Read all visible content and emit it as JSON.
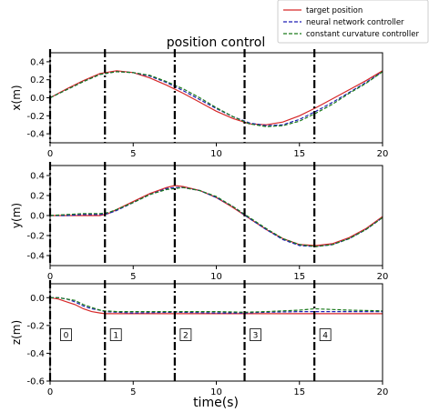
{
  "chart_data": {
    "type": "line",
    "title": "position control",
    "xlabel": "time(s)",
    "xlim": [
      0,
      20
    ],
    "xticks": [
      0,
      5,
      10,
      15,
      20
    ],
    "legend": {
      "placement": "top-right",
      "entries": [
        {
          "name": "target position",
          "color": "#d62728",
          "style": "solid"
        },
        {
          "name": "neural network controller",
          "color": "#1f1fb4",
          "style": "dashed"
        },
        {
          "name": "constant curvature controller",
          "color": "#1a7a1a",
          "style": "dashed"
        }
      ]
    },
    "segment_lines": [
      0,
      3.3,
      7.5,
      11.7,
      15.9
    ],
    "segment_markers": [
      {
        "label": "0",
        "t": 0.3
      },
      {
        "label": "1",
        "t": 3.3
      },
      {
        "label": "2",
        "t": 7.5
      },
      {
        "label": "3",
        "t": 11.7
      },
      {
        "label": "4",
        "t": 15.9
      }
    ],
    "panels": [
      {
        "ylabel": "x(m)",
        "ylim": [
          -0.5,
          0.5
        ],
        "yticks": [
          "0.4",
          "0.2",
          "0.0",
          "-0.2",
          "-0.4"
        ],
        "ytick_values": [
          0.4,
          0.2,
          0.0,
          -0.2,
          -0.4
        ],
        "x": [
          0,
          1,
          2,
          3,
          4,
          5,
          6,
          7,
          8,
          9,
          10,
          11,
          12,
          13,
          14,
          15,
          16,
          17,
          18,
          19,
          20
        ],
        "series": [
          {
            "name": "target position",
            "values": [
              0.0,
              0.1,
              0.19,
              0.27,
              0.3,
              0.28,
              0.22,
              0.14,
              0.05,
              -0.05,
              -0.15,
              -0.23,
              -0.29,
              -0.3,
              -0.27,
              -0.2,
              -0.11,
              -0.01,
              0.09,
              0.19,
              0.3
            ]
          },
          {
            "name": "neural network controller",
            "values": [
              0.0,
              0.09,
              0.18,
              0.26,
              0.29,
              0.28,
              0.24,
              0.17,
              0.08,
              -0.02,
              -0.12,
              -0.21,
              -0.28,
              -0.31,
              -0.3,
              -0.24,
              -0.15,
              -0.05,
              0.06,
              0.17,
              0.29
            ]
          },
          {
            "name": "constant curvature controller",
            "values": [
              0.0,
              0.09,
              0.18,
              0.26,
              0.29,
              0.28,
              0.25,
              0.18,
              0.1,
              0.0,
              -0.11,
              -0.21,
              -0.29,
              -0.32,
              -0.31,
              -0.26,
              -0.17,
              -0.07,
              0.05,
              0.16,
              0.29
            ]
          }
        ]
      },
      {
        "ylabel": "y(m)",
        "ylim": [
          -0.5,
          0.5
        ],
        "yticks": [
          "0.4",
          "0.2",
          "0.0",
          "-0.2",
          "-0.4"
        ],
        "ytick_values": [
          0.4,
          0.2,
          0.0,
          -0.2,
          -0.4
        ],
        "x": [
          0,
          1,
          2,
          3,
          3.5,
          4,
          5,
          6,
          7,
          7.5,
          8,
          9,
          10,
          11,
          12,
          13,
          14,
          15,
          16,
          17,
          18,
          19,
          20
        ],
        "series": [
          {
            "name": "target position",
            "values": [
              0.0,
              0.0,
              0.0,
              0.0,
              0.02,
              0.06,
              0.14,
              0.22,
              0.28,
              0.3,
              0.29,
              0.25,
              0.18,
              0.08,
              -0.03,
              -0.14,
              -0.23,
              -0.29,
              -0.3,
              -0.28,
              -0.22,
              -0.13,
              -0.01
            ]
          },
          {
            "name": "neural network controller",
            "values": [
              0.0,
              0.0,
              0.01,
              0.01,
              0.02,
              0.05,
              0.13,
              0.21,
              0.27,
              0.28,
              0.28,
              0.25,
              0.18,
              0.09,
              -0.03,
              -0.14,
              -0.24,
              -0.3,
              -0.31,
              -0.29,
              -0.23,
              -0.14,
              -0.02
            ]
          },
          {
            "name": "constant curvature controller",
            "values": [
              0.0,
              0.01,
              0.02,
              0.02,
              0.03,
              0.06,
              0.13,
              0.21,
              0.26,
              0.27,
              0.28,
              0.25,
              0.19,
              0.09,
              -0.02,
              -0.13,
              -0.23,
              -0.29,
              -0.31,
              -0.29,
              -0.23,
              -0.14,
              -0.02
            ]
          }
        ]
      },
      {
        "ylabel": "z(m)",
        "ylim": [
          -0.6,
          0.1
        ],
        "yticks": [
          "0.0",
          "-0.2",
          "-0.4",
          "-0.6"
        ],
        "ytick_values": [
          0.0,
          -0.2,
          -0.4,
          -0.6
        ],
        "x": [
          0,
          0.5,
          1,
          1.5,
          2,
          2.5,
          3,
          3.3,
          4,
          5,
          7.5,
          10,
          11.7,
          13,
          15,
          15.9,
          17,
          18,
          20
        ],
        "series": [
          {
            "name": "target position",
            "values": [
              0.0,
              -0.01,
              -0.03,
              -0.05,
              -0.08,
              -0.1,
              -0.11,
              -0.115,
              -0.115,
              -0.115,
              -0.115,
              -0.115,
              -0.115,
              -0.115,
              -0.115,
              -0.115,
              -0.115,
              -0.115,
              -0.115
            ]
          },
          {
            "name": "neural network controller",
            "values": [
              0.0,
              0.0,
              -0.01,
              -0.03,
              -0.06,
              -0.08,
              -0.09,
              -0.1,
              -0.105,
              -0.11,
              -0.105,
              -0.11,
              -0.11,
              -0.105,
              -0.1,
              -0.1,
              -0.1,
              -0.1,
              -0.1
            ]
          },
          {
            "name": "constant curvature controller",
            "values": [
              0.0,
              0.0,
              -0.01,
              -0.02,
              -0.05,
              -0.07,
              -0.09,
              -0.095,
              -0.1,
              -0.1,
              -0.1,
              -0.1,
              -0.105,
              -0.1,
              -0.09,
              -0.08,
              -0.085,
              -0.09,
              -0.095
            ]
          }
        ]
      }
    ]
  }
}
